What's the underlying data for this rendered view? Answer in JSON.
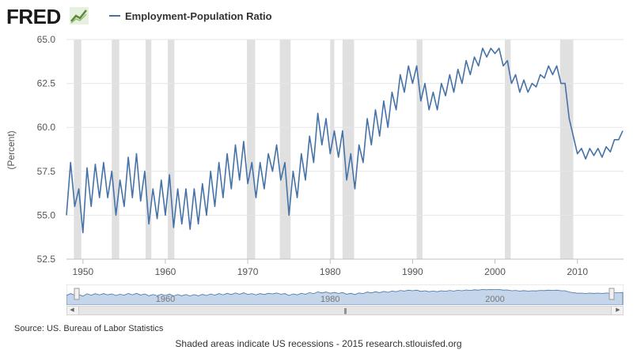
{
  "header": {
    "logo_text": "FRED",
    "logo_icon": "line-chart-icon",
    "legend_label": "Employment-Population Ratio"
  },
  "source_text": "Source: US. Bureau of Labor Statistics",
  "footer_text": "Shaded areas indicate US recessions - 2015 research.stlouisfed.org",
  "colors": {
    "series": "#4572a7",
    "recession": "#e0e0e0",
    "navigator_fill": "#c5d5ea"
  },
  "navigator": {
    "tick_labels": [
      "1960",
      "1980",
      "2000"
    ],
    "grip_icon": "grip-lines-icon",
    "left_arrow_icon": "arrow-left-icon",
    "right_arrow_icon": "arrow-right-icon"
  },
  "chart_data": {
    "type": "line",
    "title": "",
    "xlabel": "",
    "ylabel": "(Percent)",
    "xlim": [
      1948,
      2015.6
    ],
    "ylim": [
      52.5,
      65.0
    ],
    "y_ticks": [
      52.5,
      55.0,
      57.5,
      60.0,
      62.5,
      65.0
    ],
    "y_tick_labels": [
      "52.5",
      "55.0",
      "57.5",
      "60.0",
      "62.5",
      "65.0"
    ],
    "x_ticks": [
      1950,
      1960,
      1970,
      1980,
      1990,
      2000,
      2010
    ],
    "x_tick_labels": [
      "1950",
      "1960",
      "1970",
      "1980",
      "1990",
      "2000",
      "2010"
    ],
    "grid": "horizontal",
    "recessions": [
      [
        1948.9,
        1949.8
      ],
      [
        1953.5,
        1954.4
      ],
      [
        1957.6,
        1958.3
      ],
      [
        1960.3,
        1961.1
      ],
      [
        1969.9,
        1970.9
      ],
      [
        1973.9,
        1975.2
      ],
      [
        1980.0,
        1980.5
      ],
      [
        1981.5,
        1982.9
      ],
      [
        1990.5,
        1991.2
      ],
      [
        2001.2,
        2001.9
      ],
      [
        2007.9,
        2009.5
      ]
    ],
    "series": [
      {
        "name": "Employment-Population Ratio",
        "x": [
          1948.0,
          1948.5,
          1949.0,
          1949.5,
          1950.0,
          1950.5,
          1951.0,
          1951.5,
          1952.0,
          1952.5,
          1953.0,
          1953.5,
          1954.0,
          1954.5,
          1955.0,
          1955.5,
          1956.0,
          1956.5,
          1957.0,
          1957.5,
          1958.0,
          1958.5,
          1959.0,
          1959.5,
          1960.0,
          1960.5,
          1961.0,
          1961.5,
          1962.0,
          1962.5,
          1963.0,
          1963.5,
          1964.0,
          1964.5,
          1965.0,
          1965.5,
          1966.0,
          1966.5,
          1967.0,
          1967.5,
          1968.0,
          1968.5,
          1969.0,
          1969.5,
          1970.0,
          1970.5,
          1971.0,
          1971.5,
          1972.0,
          1972.5,
          1973.0,
          1973.5,
          1974.0,
          1974.5,
          1975.0,
          1975.5,
          1976.0,
          1976.5,
          1977.0,
          1977.5,
          1978.0,
          1978.5,
          1979.0,
          1979.5,
          1980.0,
          1980.5,
          1981.0,
          1981.5,
          1982.0,
          1982.5,
          1983.0,
          1983.5,
          1984.0,
          1984.5,
          1985.0,
          1985.5,
          1986.0,
          1986.5,
          1987.0,
          1987.5,
          1988.0,
          1988.5,
          1989.0,
          1989.5,
          1990.0,
          1990.5,
          1991.0,
          1991.5,
          1992.0,
          1992.5,
          1993.0,
          1993.5,
          1994.0,
          1994.5,
          1995.0,
          1995.5,
          1996.0,
          1996.5,
          1997.0,
          1997.5,
          1998.0,
          1998.5,
          1999.0,
          1999.5,
          2000.0,
          2000.5,
          2001.0,
          2001.5,
          2002.0,
          2002.5,
          2003.0,
          2003.5,
          2004.0,
          2004.5,
          2005.0,
          2005.5,
          2006.0,
          2006.5,
          2007.0,
          2007.5,
          2008.0,
          2008.5,
          2009.0,
          2009.5,
          2010.0,
          2010.5,
          2011.0,
          2011.5,
          2012.0,
          2012.5,
          2013.0,
          2013.5,
          2014.0,
          2014.5,
          2015.0,
          2015.5
        ],
        "values": [
          55.0,
          58.0,
          55.5,
          56.5,
          54.0,
          57.7,
          55.5,
          57.9,
          56.0,
          58.0,
          56.0,
          57.5,
          55.0,
          57.0,
          55.5,
          58.3,
          56.0,
          58.5,
          55.8,
          57.5,
          54.5,
          56.5,
          54.8,
          57.0,
          55.0,
          57.3,
          54.3,
          56.5,
          54.5,
          56.5,
          54.2,
          56.5,
          54.5,
          56.8,
          55.0,
          57.5,
          55.5,
          58.0,
          56.0,
          58.5,
          56.5,
          59.0,
          57.0,
          59.2,
          56.8,
          58.0,
          56.0,
          58.0,
          56.5,
          58.5,
          57.5,
          59.0,
          57.0,
          58.0,
          55.0,
          57.5,
          56.0,
          58.5,
          57.0,
          59.5,
          58.0,
          60.8,
          59.0,
          60.5,
          58.5,
          59.8,
          58.3,
          59.8,
          57.0,
          58.5,
          56.5,
          59.0,
          58.0,
          60.5,
          59.0,
          61.0,
          59.5,
          61.5,
          60.0,
          62.0,
          61.0,
          63.0,
          62.0,
          63.5,
          62.5,
          63.5,
          61.5,
          62.5,
          61.0,
          62.0,
          61.0,
          62.5,
          61.8,
          63.0,
          62.0,
          63.3,
          62.5,
          63.8,
          63.0,
          64.0,
          63.5,
          64.5,
          64.0,
          64.5,
          64.2,
          64.5,
          63.5,
          63.8,
          62.5,
          63.0,
          62.0,
          62.7,
          62.0,
          62.5,
          62.3,
          63.0,
          62.8,
          63.5,
          63.0,
          63.5,
          62.5,
          62.5,
          60.5,
          59.5,
          58.5,
          58.8,
          58.2,
          58.8,
          58.4,
          58.8,
          58.3,
          58.9,
          58.6,
          59.3,
          59.3,
          59.8
        ]
      }
    ]
  }
}
